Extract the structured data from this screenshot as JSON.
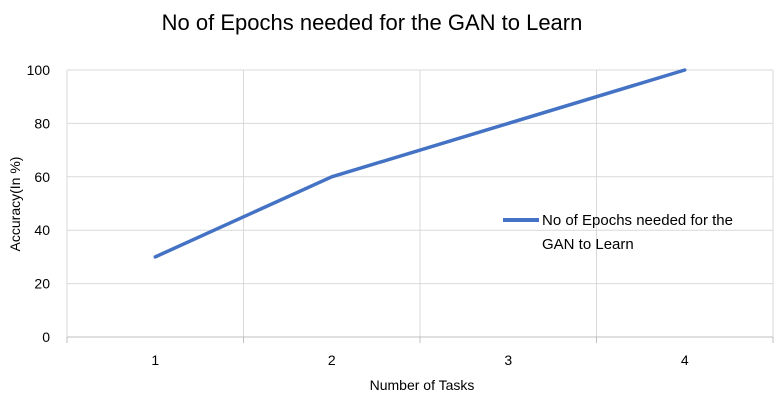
{
  "chart_data": {
    "type": "line",
    "title": "No of Epochs needed for the GAN to Learn",
    "xlabel": "Number of Tasks",
    "ylabel": "Accuracy(In %)",
    "categories": [
      "1",
      "2",
      "3",
      "4"
    ],
    "series": [
      {
        "name_lines": [
          "No of Epochs needed for the",
          "GAN to Learn"
        ],
        "values": [
          30,
          60,
          80,
          100
        ],
        "color": "#4472C4"
      }
    ],
    "yticks": [
      "0",
      "20",
      "40",
      "60",
      "80",
      "100"
    ],
    "ylim": [
      0,
      100
    ],
    "grid": true,
    "legend_position": "right"
  }
}
